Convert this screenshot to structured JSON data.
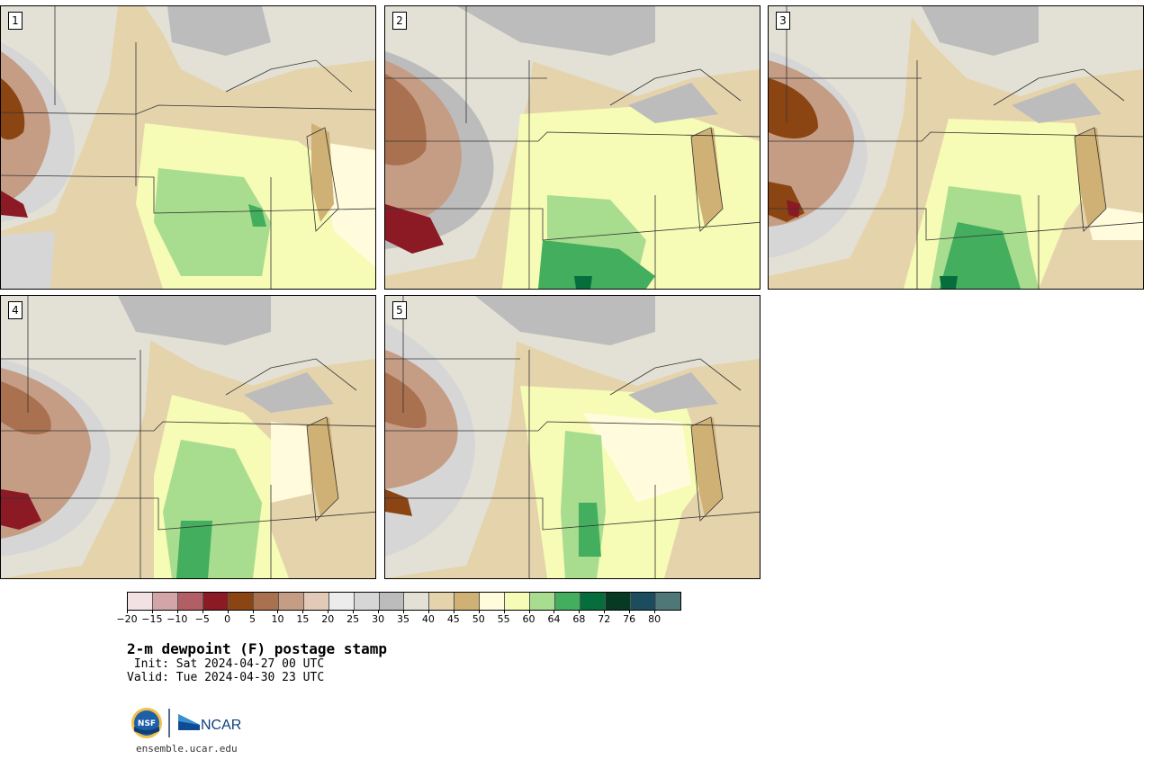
{
  "panels": [
    {
      "label": "1"
    },
    {
      "label": "2"
    },
    {
      "label": "3"
    },
    {
      "label": "4"
    },
    {
      "label": "5"
    }
  ],
  "colorbar": {
    "ticks": [
      "−20",
      "−15",
      "−10",
      "−5",
      "0",
      "5",
      "10",
      "15",
      "20",
      "25",
      "30",
      "35",
      "40",
      "45",
      "50",
      "55",
      "60",
      "64",
      "68",
      "72",
      "76",
      "80"
    ],
    "colors": [
      "#f2e2e4",
      "#d3a4a8",
      "#b15f64",
      "#8b1a24",
      "#8b4513",
      "#a9714f",
      "#c59d85",
      "#e2c9b8",
      "#ececec",
      "#d6d6d6",
      "#bcbcbc",
      "#e3e1d5",
      "#e5d3ac",
      "#d0b175",
      "#fffbdc",
      "#f6fbb5",
      "#a8dc8f",
      "#43ae5e",
      "#066e3c",
      "#063a23",
      "#1b4d5e",
      "#4f7778"
    ]
  },
  "title": "2-m dewpoint (F) postage stamp",
  "init_label": " Init: Sat 2024-04-27 00 UTC",
  "valid_label": "Valid: Tue 2024-04-30 23 UTC",
  "logos": {
    "nsf_text": "NSF",
    "ncar_text": "NCAR"
  },
  "url": "ensemble.ucar.edu"
}
